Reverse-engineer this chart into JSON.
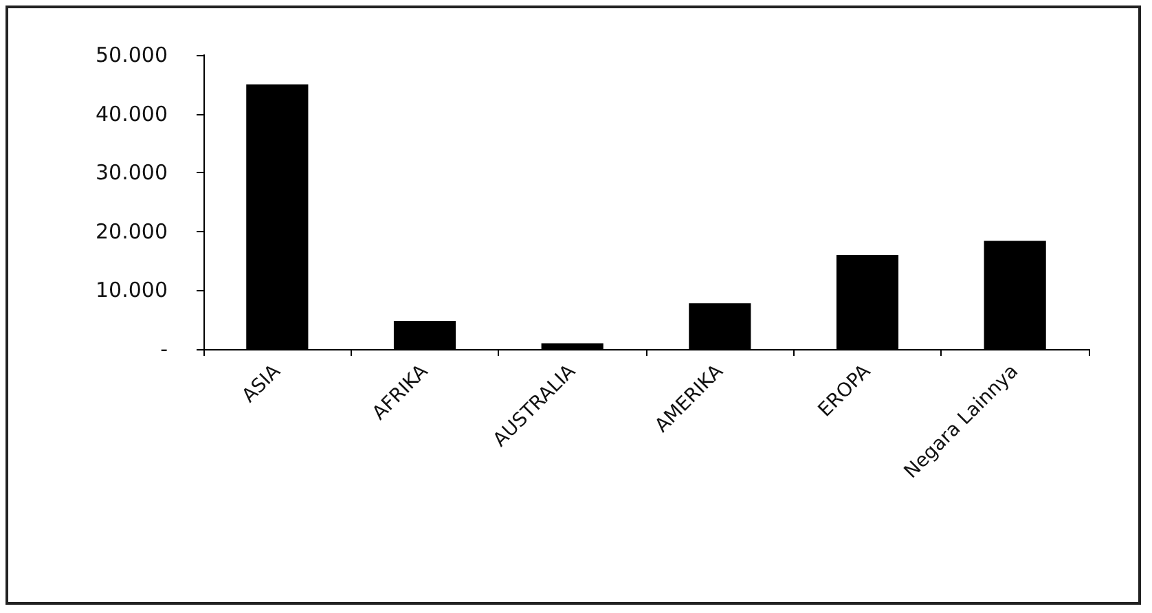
{
  "chart_data": {
    "type": "bar",
    "categories": [
      "ASIA",
      "AFRIKA",
      "AUSTRALIA",
      "AMERIKA",
      "EROPA",
      "Negara Lainnya"
    ],
    "values": [
      45000,
      4800,
      1000,
      7800,
      16000,
      18400
    ],
    "color": "#000000",
    "ylim": [
      0,
      50000
    ],
    "yticks": [
      {
        "value": 0,
        "label": "-"
      },
      {
        "value": 10000,
        "label": "10.000"
      },
      {
        "value": 20000,
        "label": "20.000"
      },
      {
        "value": 30000,
        "label": "30.000"
      },
      {
        "value": 40000,
        "label": "40.000"
      },
      {
        "value": 50000,
        "label": "50.000"
      }
    ],
    "grid": false
  }
}
